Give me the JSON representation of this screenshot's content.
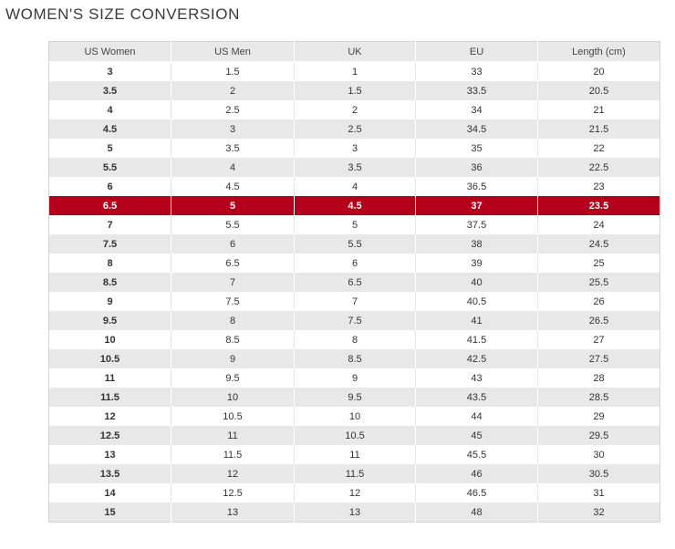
{
  "title": "WOMEN'S SIZE CONVERSION",
  "colors": {
    "highlight": "#b5001c",
    "stripe": "#e8e8e8"
  },
  "table": {
    "headers": [
      "US Women",
      "US Men",
      "UK",
      "EU",
      "Length (cm)"
    ],
    "highlight_row": "6.5",
    "rows": [
      [
        "3",
        "1.5",
        "1",
        "33",
        "20"
      ],
      [
        "3.5",
        "2",
        "1.5",
        "33.5",
        "20.5"
      ],
      [
        "4",
        "2.5",
        "2",
        "34",
        "21"
      ],
      [
        "4.5",
        "3",
        "2.5",
        "34.5",
        "21.5"
      ],
      [
        "5",
        "3.5",
        "3",
        "35",
        "22"
      ],
      [
        "5.5",
        "4",
        "3.5",
        "36",
        "22.5"
      ],
      [
        "6",
        "4.5",
        "4",
        "36.5",
        "23"
      ],
      [
        "6.5",
        "5",
        "4.5",
        "37",
        "23.5"
      ],
      [
        "7",
        "5.5",
        "5",
        "37.5",
        "24"
      ],
      [
        "7.5",
        "6",
        "5.5",
        "38",
        "24.5"
      ],
      [
        "8",
        "6.5",
        "6",
        "39",
        "25"
      ],
      [
        "8.5",
        "7",
        "6.5",
        "40",
        "25.5"
      ],
      [
        "9",
        "7.5",
        "7",
        "40.5",
        "26"
      ],
      [
        "9.5",
        "8",
        "7.5",
        "41",
        "26.5"
      ],
      [
        "10",
        "8.5",
        "8",
        "41.5",
        "27"
      ],
      [
        "10.5",
        "9",
        "8.5",
        "42.5",
        "27.5"
      ],
      [
        "11",
        "9.5",
        "9",
        "43",
        "28"
      ],
      [
        "11.5",
        "10",
        "9.5",
        "43.5",
        "28.5"
      ],
      [
        "12",
        "10.5",
        "10",
        "44",
        "29"
      ],
      [
        "12.5",
        "11",
        "10.5",
        "45",
        "29.5"
      ],
      [
        "13",
        "11.5",
        "11",
        "45.5",
        "30"
      ],
      [
        "13.5",
        "12",
        "11.5",
        "46",
        "30.5"
      ],
      [
        "14",
        "12.5",
        "12",
        "46.5",
        "31"
      ],
      [
        "15",
        "13",
        "13",
        "48",
        "32"
      ]
    ]
  }
}
